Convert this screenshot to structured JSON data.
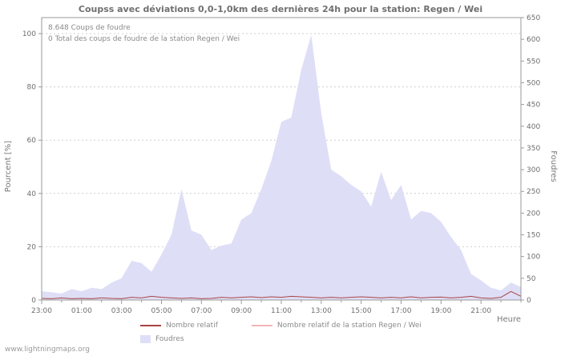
{
  "watermark": "www.lightningmaps.org",
  "chart_data": {
    "type": "area",
    "title": "Coupss avec déviations 0,0-1,0km des dernières 24h pour la station: Regen / Wei",
    "xlabel": "Heure",
    "ylabel_left": "Pourcent  [%]",
    "ylabel_right": "Foudres",
    "annotations": [
      "8.648  Coups de foudre",
      "0 Total des coups de foudre de la station Regen / Wei"
    ],
    "grid": "horizontal-dashed",
    "legend_position": "bottom",
    "x_range_hours": [
      0,
      24
    ],
    "x_tick_hours": [
      0,
      2,
      4,
      6,
      8,
      10,
      12,
      14,
      16,
      18,
      20,
      22
    ],
    "x_tick_labels": [
      "23:00",
      "01:00",
      "03:00",
      "05:00",
      "07:00",
      "09:00",
      "11:00",
      "13:00",
      "15:00",
      "17:00",
      "19:00",
      "21:00"
    ],
    "ylim_left": [
      0,
      100
    ],
    "yticks_left": [
      0,
      20,
      40,
      60,
      80,
      100
    ],
    "ylim_right": [
      0,
      650
    ],
    "yticks_right": [
      0,
      50,
      100,
      150,
      200,
      250,
      300,
      350,
      400,
      450,
      500,
      550,
      600,
      650
    ],
    "x_hours": [
      0,
      0.5,
      1,
      1.5,
      2,
      2.5,
      3,
      3.5,
      4,
      4.5,
      5,
      5.5,
      6,
      6.5,
      7,
      7.5,
      8,
      8.5,
      9,
      9.5,
      10,
      10.5,
      11,
      11.5,
      12,
      12.5,
      13,
      13.5,
      14,
      14.5,
      15,
      15.5,
      16,
      16.5,
      17,
      17.5,
      18,
      18.5,
      19,
      19.5,
      20,
      20.5,
      21,
      21.5,
      22,
      22.5,
      23,
      23.5,
      24
    ],
    "series": [
      {
        "name": "Foudres",
        "type": "area",
        "axis": "right",
        "color": "#dedef7",
        "values": [
          20,
          18,
          15,
          25,
          20,
          28,
          25,
          40,
          50,
          90,
          85,
          65,
          105,
          150,
          255,
          160,
          150,
          115,
          125,
          130,
          185,
          200,
          255,
          320,
          410,
          420,
          530,
          610,
          430,
          300,
          285,
          265,
          250,
          215,
          295,
          230,
          265,
          185,
          205,
          200,
          180,
          145,
          115,
          60,
          45,
          28,
          22,
          40,
          30
        ]
      },
      {
        "name": "Nombre relatif de la station Regen / Wei",
        "type": "line",
        "axis": "left",
        "color": "#f2b6b6",
        "values": [
          0,
          0,
          0,
          0,
          0,
          0,
          0,
          0,
          0,
          0,
          0,
          0,
          0,
          0,
          0,
          0,
          0,
          0,
          0,
          0,
          0,
          0,
          0,
          0,
          0,
          0,
          0,
          0,
          0,
          0,
          0,
          0,
          0,
          0,
          0,
          0,
          0,
          0,
          0,
          0,
          0,
          0,
          0,
          0,
          0,
          0,
          0,
          0,
          0
        ]
      },
      {
        "name": "Nombre relatif",
        "type": "line",
        "axis": "left",
        "color": "#aa4444",
        "values": [
          0.6,
          0.5,
          0.8,
          0.5,
          0.6,
          0.5,
          0.8,
          0.6,
          0.5,
          1.0,
          0.8,
          1.4,
          1.0,
          0.8,
          0.6,
          0.8,
          0.5,
          0.6,
          1.0,
          0.8,
          1.0,
          1.2,
          0.9,
          1.2,
          1.0,
          1.4,
          1.2,
          1.0,
          0.8,
          1.0,
          0.8,
          1.0,
          1.2,
          1.0,
          0.8,
          1.0,
          0.8,
          1.2,
          0.8,
          1.0,
          1.1,
          0.8,
          1.0,
          1.4,
          0.8,
          0.6,
          1.0,
          3.2,
          1.4
        ]
      }
    ]
  }
}
